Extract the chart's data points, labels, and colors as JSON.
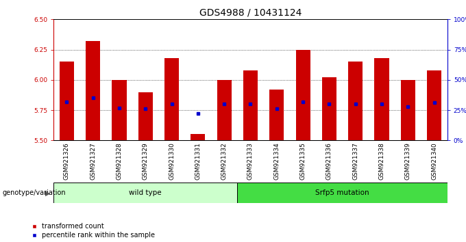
{
  "title": "GDS4988 / 10431124",
  "samples": [
    "GSM921326",
    "GSM921327",
    "GSM921328",
    "GSM921329",
    "GSM921330",
    "GSM921331",
    "GSM921332",
    "GSM921333",
    "GSM921334",
    "GSM921335",
    "GSM921336",
    "GSM921337",
    "GSM921338",
    "GSM921339",
    "GSM921340"
  ],
  "bar_tops": [
    6.15,
    6.32,
    6.0,
    5.9,
    6.18,
    5.55,
    6.0,
    6.08,
    5.92,
    6.25,
    6.02,
    6.15,
    6.18,
    6.0,
    6.08
  ],
  "bar_base": 5.5,
  "blue_values": [
    5.82,
    5.85,
    5.77,
    5.76,
    5.8,
    5.72,
    5.8,
    5.8,
    5.76,
    5.82,
    5.8,
    5.8,
    5.8,
    5.78,
    5.81
  ],
  "bar_color": "#cc0000",
  "blue_color": "#0000cc",
  "ylim": [
    5.5,
    6.5
  ],
  "yticks_left": [
    5.5,
    5.75,
    6.0,
    6.25,
    6.5
  ],
  "yticks_right_pct": [
    0,
    25,
    50,
    75,
    100
  ],
  "grid_values": [
    5.75,
    6.0,
    6.25
  ],
  "groups": [
    {
      "label": "wild type",
      "start": 0,
      "end": 7,
      "color": "#ccffcc"
    },
    {
      "label": "Srfp5 mutation",
      "start": 7,
      "end": 15,
      "color": "#44dd44"
    }
  ],
  "group_label": "genotype/variation",
  "legend_red_label": "transformed count",
  "legend_blue_label": "percentile rank within the sample",
  "bar_width": 0.55,
  "title_fontsize": 10,
  "tick_fontsize": 6.5,
  "xtick_bg": "#c8c8c8",
  "bar_color_left_axis": "#cc0000",
  "bar_color_right_axis": "#0000cc"
}
